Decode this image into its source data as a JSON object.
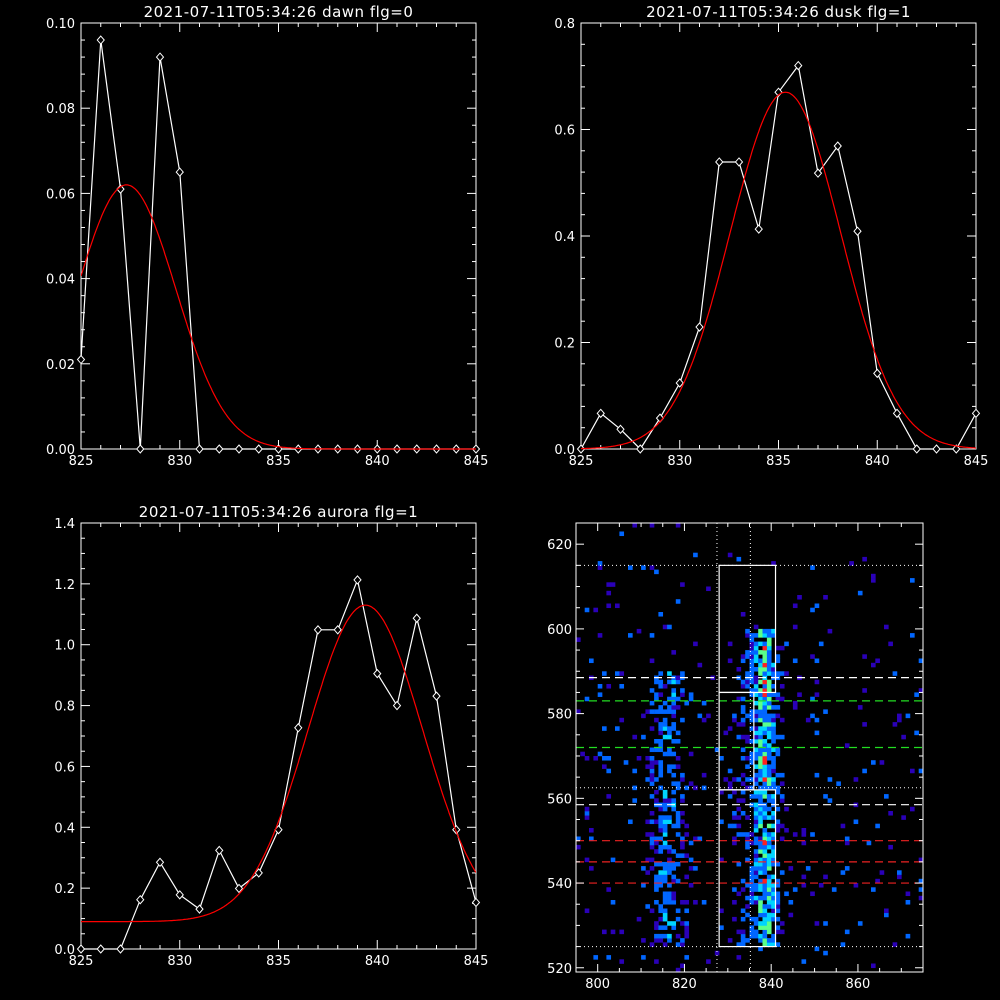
{
  "chart_data": [
    {
      "id": "dawn",
      "type": "line",
      "title": "2021-07-11T05:34:26 dawn flg=0",
      "xlabel": "",
      "ylabel": "",
      "xlim": [
        825,
        845
      ],
      "ylim": [
        0,
        0.1
      ],
      "xticks": [
        825,
        830,
        835,
        840,
        845
      ],
      "yticks": [
        0.0,
        0.02,
        0.04,
        0.06,
        0.08,
        0.1
      ],
      "ytick_labels": [
        "0.00",
        "0.02",
        "0.04",
        "0.06",
        "0.08",
        "0.10"
      ],
      "series": [
        {
          "color": "#ffffff",
          "markers": "diamond",
          "x": [
            825,
            826,
            827,
            828,
            829,
            830,
            831,
            832,
            833,
            834,
            835,
            836,
            837,
            838,
            839,
            840,
            841,
            842,
            843,
            844,
            845
          ],
          "y": [
            0.021,
            0.096,
            0.061,
            0.0,
            0.092,
            0.065,
            0.0,
            0,
            0,
            0,
            0,
            0,
            0,
            0,
            0,
            0,
            0,
            0,
            0,
            0,
            0
          ]
        },
        {
          "color": "#ff0000",
          "markers": "none",
          "fit": "gaussian",
          "amplitude": 0.062,
          "center": 827.3,
          "sigma": 2.5,
          "offset": 0.0
        }
      ]
    },
    {
      "id": "dusk",
      "type": "line",
      "title": "2021-07-11T05:34:26 dusk flg=1",
      "xlabel": "",
      "ylabel": "",
      "xlim": [
        825,
        845
      ],
      "ylim": [
        0,
        0.8
      ],
      "xticks": [
        825,
        830,
        835,
        840,
        845
      ],
      "yticks": [
        0.0,
        0.2,
        0.4,
        0.6,
        0.8
      ],
      "ytick_labels": [
        "0.0",
        "0.2",
        "0.4",
        "0.6",
        "0.8"
      ],
      "series": [
        {
          "color": "#ffffff",
          "markers": "diamond",
          "x": [
            825,
            826,
            827,
            828,
            829,
            830,
            831,
            832,
            833,
            834,
            835,
            836,
            837,
            838,
            839,
            840,
            841,
            842,
            843,
            844,
            845
          ],
          "y": [
            0.0,
            0.067,
            0.037,
            0.0,
            0.058,
            0.124,
            0.229,
            0.539,
            0.539,
            0.413,
            0.67,
            0.72,
            0.518,
            0.569,
            0.409,
            0.142,
            0.067,
            0.0,
            0.0,
            0.0,
            0.067
          ]
        },
        {
          "color": "#ff0000",
          "markers": "none",
          "fit": "gaussian",
          "amplitude": 0.67,
          "center": 835.35,
          "sigma": 2.8,
          "offset": 0.0
        }
      ]
    },
    {
      "id": "aurora",
      "type": "line",
      "title": "2021-07-11T05:34:26 aurora flg=1",
      "xlabel": "",
      "ylabel": "",
      "xlim": [
        825,
        845
      ],
      "ylim": [
        0,
        1.4
      ],
      "xticks": [
        825,
        830,
        835,
        840,
        845
      ],
      "yticks": [
        0.0,
        0.2,
        0.4,
        0.6,
        0.8,
        1.0,
        1.2,
        1.4
      ],
      "ytick_labels": [
        "0.0",
        "0.2",
        "0.4",
        "0.6",
        "0.8",
        "1.0",
        "1.2",
        "1.4"
      ],
      "series": [
        {
          "color": "#ffffff",
          "markers": "diamond",
          "x": [
            825,
            826,
            827,
            828,
            829,
            830,
            831,
            832,
            833,
            834,
            835,
            836,
            837,
            838,
            839,
            840,
            841,
            842,
            843,
            844,
            845
          ],
          "y": [
            0.0,
            0.0,
            0.0,
            0.162,
            0.285,
            0.178,
            0.131,
            0.324,
            0.199,
            0.25,
            0.392,
            0.727,
            1.049,
            1.049,
            1.213,
            0.905,
            0.8,
            1.087,
            0.831,
            0.392,
            0.153
          ]
        },
        {
          "color": "#ff0000",
          "markers": "none",
          "fit": "gaussian",
          "amplitude": 1.04,
          "center": 839.4,
          "sigma": 2.9,
          "offset": 0.09
        }
      ]
    },
    {
      "id": "image",
      "type": "heatmap",
      "title": "",
      "xlabel": "",
      "ylabel": "",
      "xlim": [
        795,
        875
      ],
      "ylim": [
        519,
        625
      ],
      "xticks": [
        800,
        820,
        840,
        860
      ],
      "yticks": [
        520,
        540,
        560,
        580,
        600,
        620
      ],
      "colormap": [
        "#2a00b8",
        "#0066ff",
        "#00d4ff",
        "#5aff8a",
        "#ff2020"
      ],
      "emission_bands": [
        {
          "x_center": 838.5,
          "x_halfwidth": 3.5,
          "y_range": [
            525,
            600
          ],
          "peak": 0.9
        },
        {
          "x_center": 816,
          "x_halfwidth": 4.5,
          "y_range": [
            525,
            590
          ],
          "peak": 0.55
        },
        {
          "x_center": 834,
          "x_halfwidth": 2.5,
          "y_range": [
            525,
            595
          ],
          "peak": 0.4
        }
      ],
      "boxes": [
        {
          "x": [
            828,
            841
          ],
          "y": [
            525,
            562
          ]
        },
        {
          "x": [
            828,
            841
          ],
          "y": [
            585,
            615
          ]
        },
        {
          "x": [
            828,
            836
          ],
          "y": [
            562,
            585
          ]
        }
      ],
      "vlines_dotted": [
        827.5,
        835.2
      ],
      "hlines_dotted": [
        525,
        562.5,
        615
      ],
      "hlines_dashed": [
        {
          "y": 588.5,
          "color": "#ffffff"
        },
        {
          "y": 583,
          "color": "#22dd22"
        },
        {
          "y": 572,
          "color": "#22dd22"
        },
        {
          "y": 558.5,
          "color": "#ffffff"
        },
        {
          "y": 550,
          "color": "#ee2222"
        },
        {
          "y": 545,
          "color": "#ee2222"
        },
        {
          "y": 540,
          "color": "#ee2222"
        }
      ]
    }
  ]
}
